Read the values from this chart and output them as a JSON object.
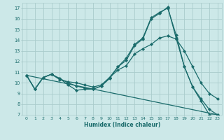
{
  "title": "",
  "xlabel": "Humidex (Indice chaleur)",
  "bg_color": "#cce8e8",
  "grid_color": "#aacccc",
  "line_color": "#1a6b6b",
  "xlim": [
    -0.5,
    23.5
  ],
  "ylim": [
    7,
    17.5
  ],
  "xticks": [
    0,
    1,
    2,
    3,
    4,
    5,
    6,
    7,
    8,
    9,
    10,
    11,
    12,
    13,
    14,
    15,
    16,
    17,
    18,
    19,
    20,
    21,
    22,
    23
  ],
  "yticks": [
    7,
    8,
    9,
    10,
    11,
    12,
    13,
    14,
    15,
    16,
    17
  ],
  "line1_x": [
    0,
    1,
    2,
    3,
    4,
    5,
    6,
    7,
    8,
    9,
    10,
    11,
    12,
    13,
    14,
    15,
    16,
    17,
    18,
    19,
    20,
    21,
    22,
    23
  ],
  "line1_y": [
    10.7,
    9.4,
    10.5,
    10.8,
    10.4,
    9.8,
    9.3,
    9.4,
    9.4,
    9.7,
    10.4,
    11.5,
    12.1,
    13.5,
    14.1,
    16.0,
    16.5,
    17.1,
    14.2,
    11.5,
    9.6,
    8.3,
    7.0,
    7.0
  ],
  "line2_x": [
    0,
    1,
    2,
    3,
    4,
    5,
    6,
    7,
    8,
    9,
    10,
    11,
    12,
    13,
    14,
    15,
    16,
    17,
    18,
    19,
    20,
    21,
    22,
    23
  ],
  "line2_y": [
    10.7,
    9.4,
    10.5,
    10.8,
    10.3,
    10.1,
    10.0,
    9.8,
    9.6,
    9.8,
    10.5,
    11.2,
    11.6,
    12.7,
    13.2,
    13.6,
    14.2,
    14.4,
    14.1,
    13.0,
    11.5,
    10.0,
    9.0,
    8.5
  ],
  "line3_x": [
    0,
    1,
    2,
    3,
    4,
    5,
    6,
    7,
    8,
    9,
    10,
    11,
    12,
    13,
    14,
    15,
    16,
    17,
    18,
    19,
    20,
    21,
    22,
    23
  ],
  "line3_y": [
    10.7,
    9.4,
    10.5,
    10.8,
    10.4,
    10.0,
    9.7,
    9.5,
    9.4,
    9.7,
    10.5,
    11.5,
    12.3,
    13.6,
    14.2,
    16.1,
    16.6,
    17.0,
    14.5,
    11.5,
    9.6,
    8.5,
    7.5,
    7.0
  ],
  "line4_x": [
    0,
    23
  ],
  "line4_y": [
    10.7,
    7.0
  ]
}
